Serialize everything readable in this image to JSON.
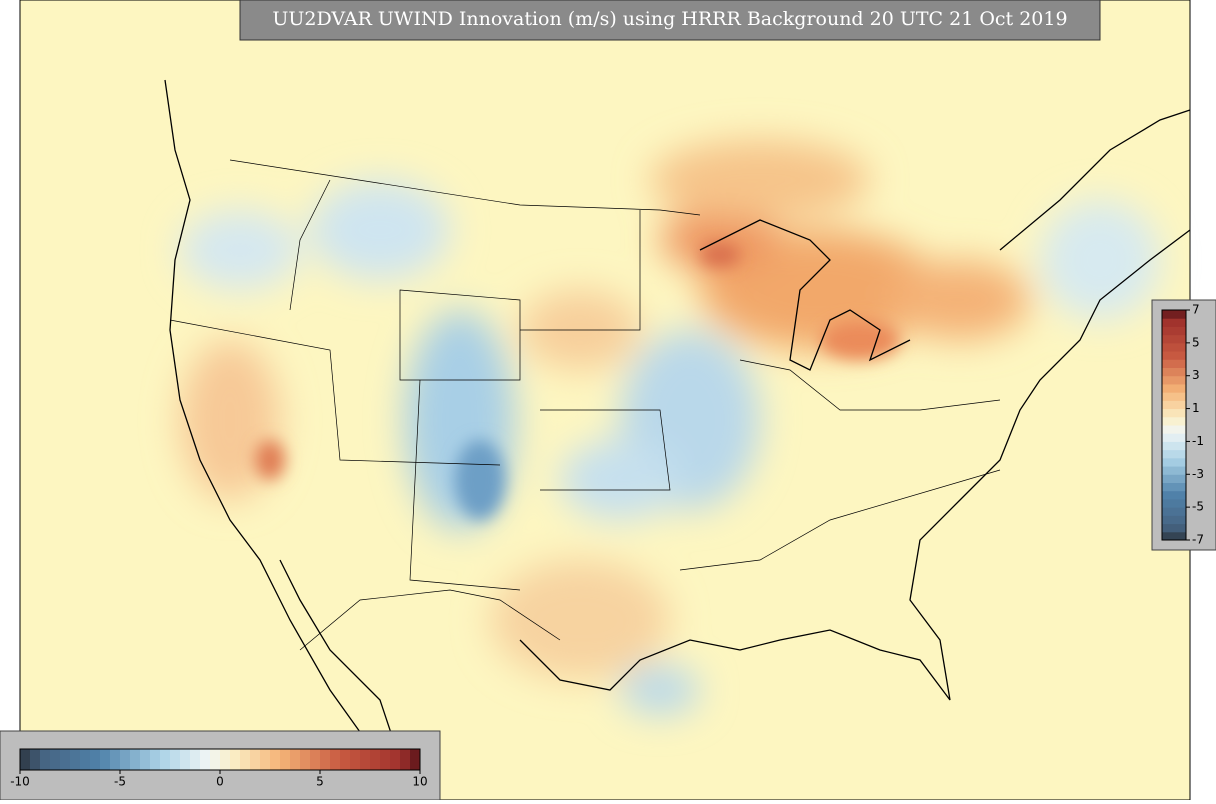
{
  "title": "UU2DVAR UWIND Innovation (m/s) using HRRR Background 20 UTC 21 Oct 2019",
  "colorbar_bottom": {
    "range": [
      -10,
      10
    ],
    "ticks": [
      -10,
      -5,
      0,
      5,
      10
    ]
  },
  "colorbar_right": {
    "range": [
      -7,
      7
    ],
    "ticks": [
      7,
      5,
      3,
      1,
      -1,
      -3,
      -5,
      -7
    ]
  }
}
